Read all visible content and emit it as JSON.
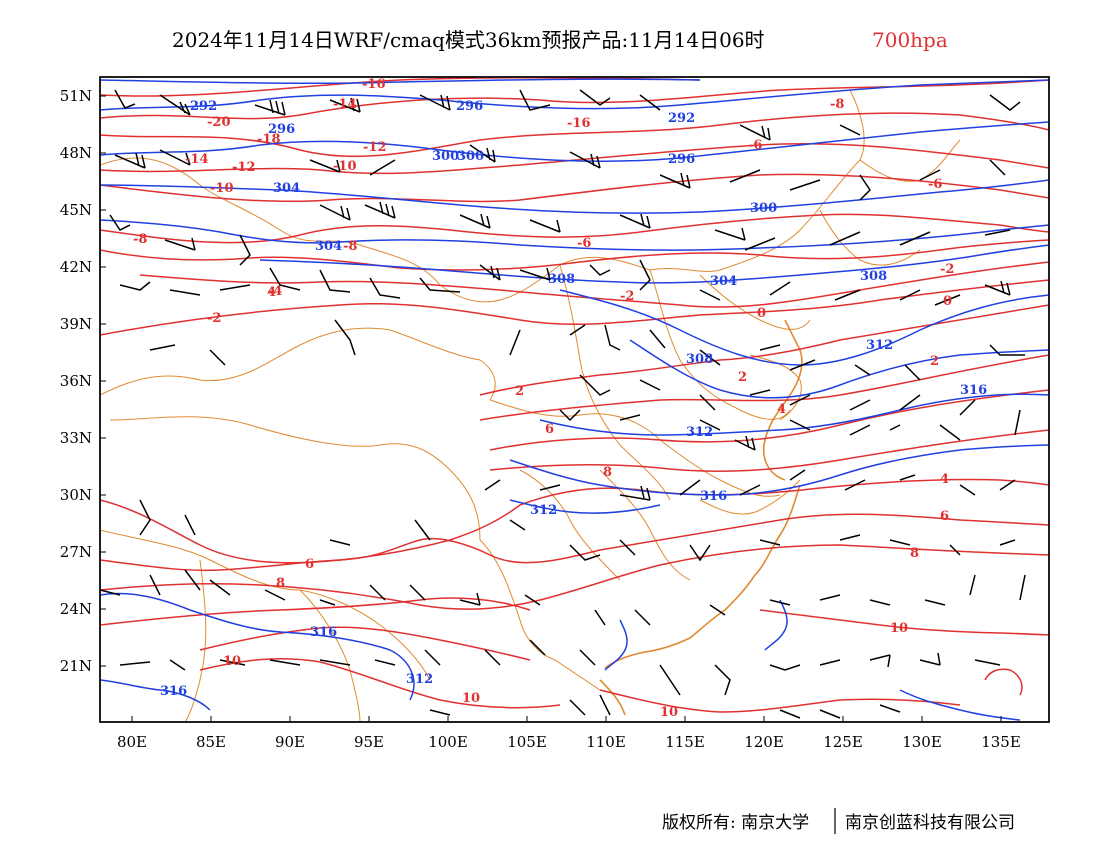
{
  "title": {
    "main": "2024年11月14日WRF/cmaq模式36km预报产品:11月14日06时",
    "level": "700hpa"
  },
  "colors": {
    "temperature": "#e03030",
    "geopotential": "#2040e0",
    "boundary": "#e08a30",
    "wind": "#000000",
    "level_label": "#e03030"
  },
  "axes": {
    "lon_ticks": [
      "80E",
      "85E",
      "90E",
      "95E",
      "100E",
      "105E",
      "110E",
      "115E",
      "120E",
      "125E",
      "130E",
      "135E"
    ],
    "lat_ticks": [
      "51N",
      "48N",
      "45N",
      "42N",
      "39N",
      "36N",
      "33N",
      "30N",
      "27N",
      "24N",
      "21N"
    ]
  },
  "contour_labels": {
    "temperature": [
      "-16",
      "-20",
      "-18",
      "-14",
      "-12",
      "-10",
      "-8",
      "-6",
      "-4",
      "-2",
      "0",
      "2",
      "4",
      "6",
      "8",
      "10",
      "-16",
      "-14",
      "-12",
      "-10",
      "-8",
      "-6",
      "-2",
      "-8",
      "-6",
      "-2",
      "0",
      "2",
      "4",
      "6",
      "8",
      "10",
      "10",
      "10",
      "8",
      "6",
      "2",
      "4"
    ],
    "geopotential": [
      "292",
      "296",
      "300",
      "304",
      "308",
      "312",
      "316",
      "292",
      "296",
      "300",
      "304",
      "308",
      "312",
      "316",
      "316",
      "312",
      "308",
      "300",
      "296",
      "304",
      "316",
      "312"
    ]
  },
  "footer": {
    "left": "版权所有: 南京大学",
    "right": "南京创蓝科技有限公司"
  }
}
